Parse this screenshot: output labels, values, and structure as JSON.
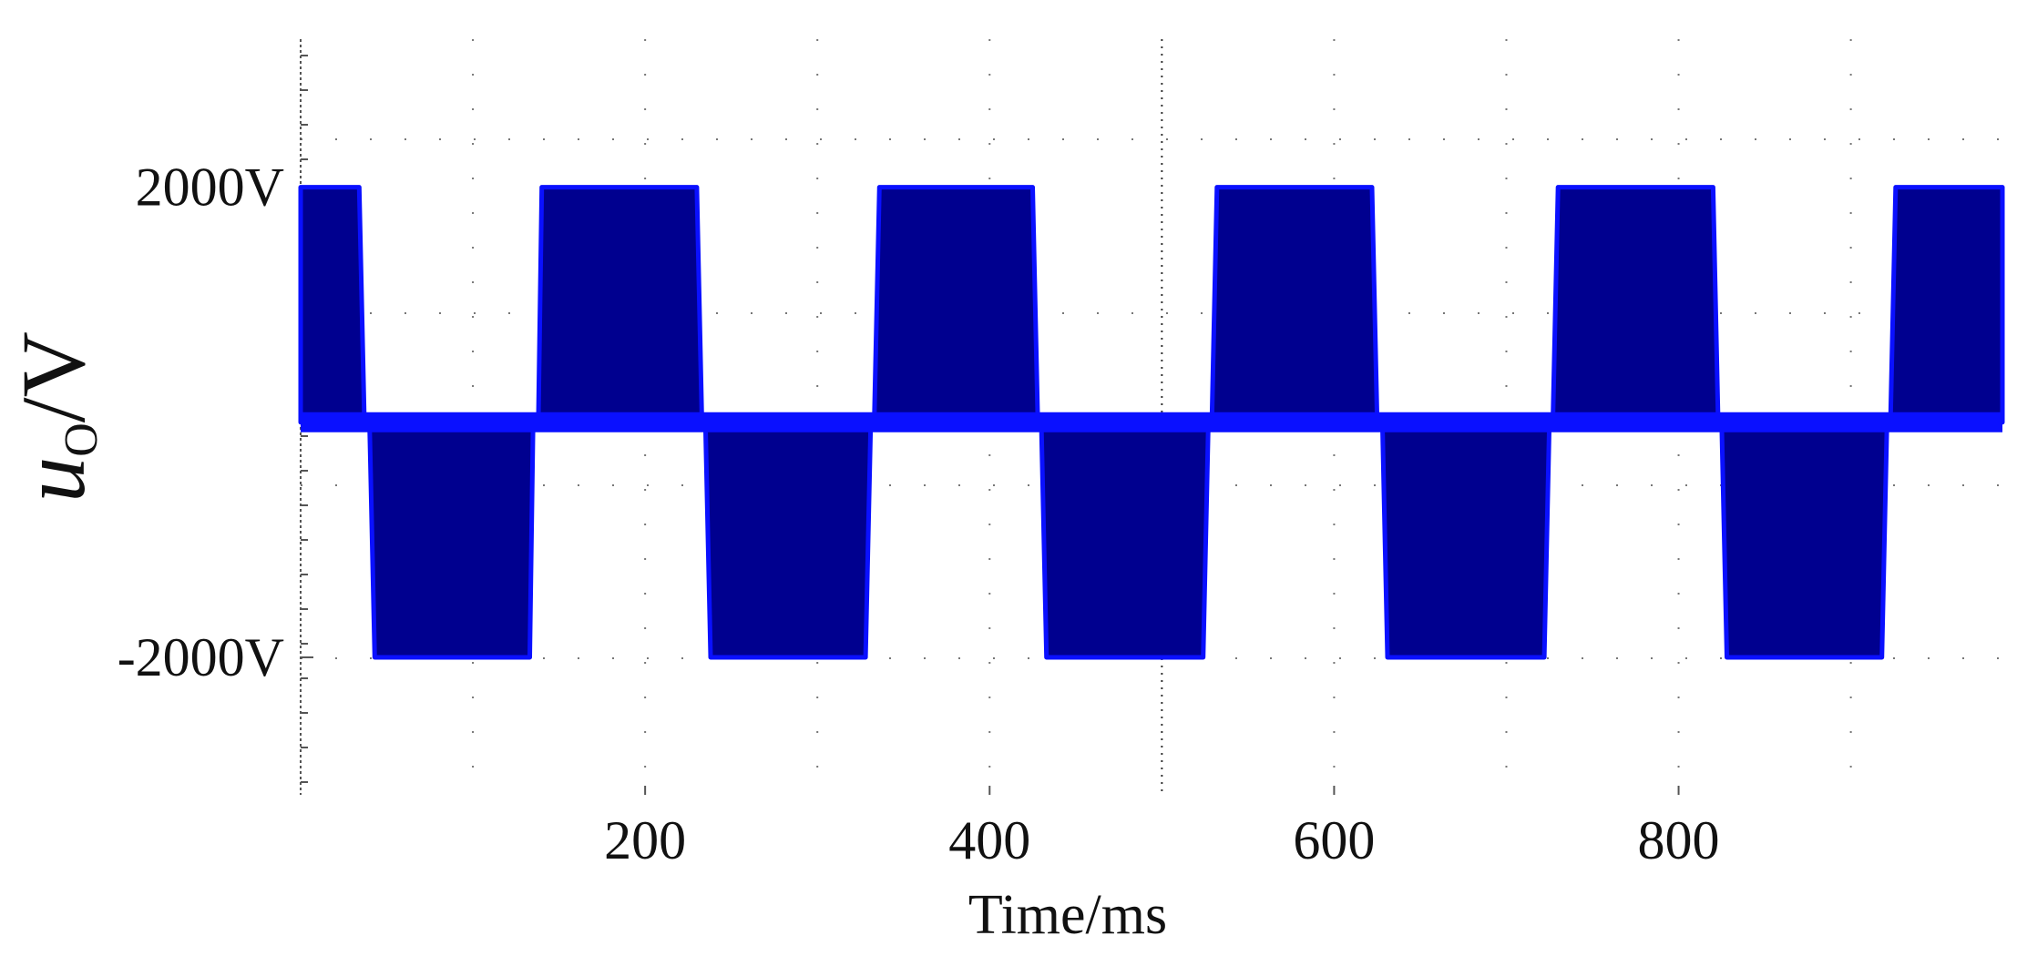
{
  "chart_data": {
    "type": "area",
    "x_label": "Time/ms",
    "y_label": {
      "var": "u",
      "sub": "O",
      "unit": "/V"
    },
    "x": [
      0,
      34,
      37,
      40,
      43,
      133,
      135,
      138,
      140,
      230,
      233,
      235,
      238,
      328,
      331,
      333,
      336,
      425,
      428,
      430,
      433,
      524,
      527,
      529,
      532,
      622,
      625,
      628,
      631,
      722,
      725,
      727,
      730,
      820,
      823,
      825,
      828,
      918,
      921,
      923,
      926,
      988
    ],
    "series": [
      {
        "color": "#00008f",
        "line_color": "#0a10ff",
        "values": [
          2000,
          2000,
          0,
          0,
          -2000,
          -2000,
          0,
          0,
          2000,
          2000,
          0,
          0,
          -2000,
          -2000,
          0,
          0,
          2000,
          2000,
          0,
          0,
          -2000,
          -2000,
          0,
          0,
          2000,
          2000,
          0,
          0,
          -2000,
          -2000,
          0,
          0,
          2000,
          2000,
          0,
          0,
          -2000,
          -2000,
          0,
          0,
          2000,
          2000
        ]
      }
    ],
    "xlim": [
      0,
      988
    ],
    "ylim": [
      -3170,
      3260
    ],
    "xticks": [
      200,
      400,
      600,
      800
    ],
    "yticks": [
      {
        "value": -2000,
        "label": "-2000V"
      },
      {
        "value": 2000,
        "label": "2000V"
      }
    ]
  }
}
